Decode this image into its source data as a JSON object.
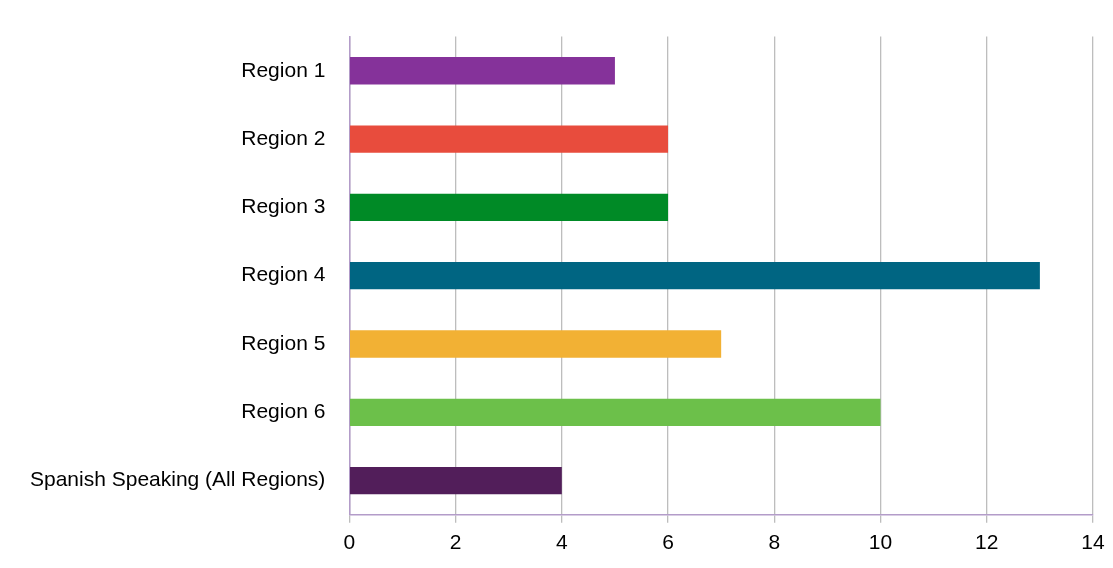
{
  "chart_data": {
    "type": "bar",
    "orientation": "horizontal",
    "categories": [
      "Region 1",
      "Region 2",
      "Region 3",
      "Region 4",
      "Region 5",
      "Region 6",
      "Spanish Speaking (All Regions)"
    ],
    "values": [
      5,
      6,
      6,
      13,
      7,
      10,
      4
    ],
    "colors": [
      "#85329a",
      "#e84c3d",
      "#008a26",
      "#006582",
      "#f2b134",
      "#6cc04a",
      "#521e5a"
    ],
    "xlim": [
      0,
      14
    ],
    "xticks": [
      0,
      2,
      4,
      6,
      8,
      10,
      12,
      14
    ],
    "grid": "x",
    "legend": false
  }
}
